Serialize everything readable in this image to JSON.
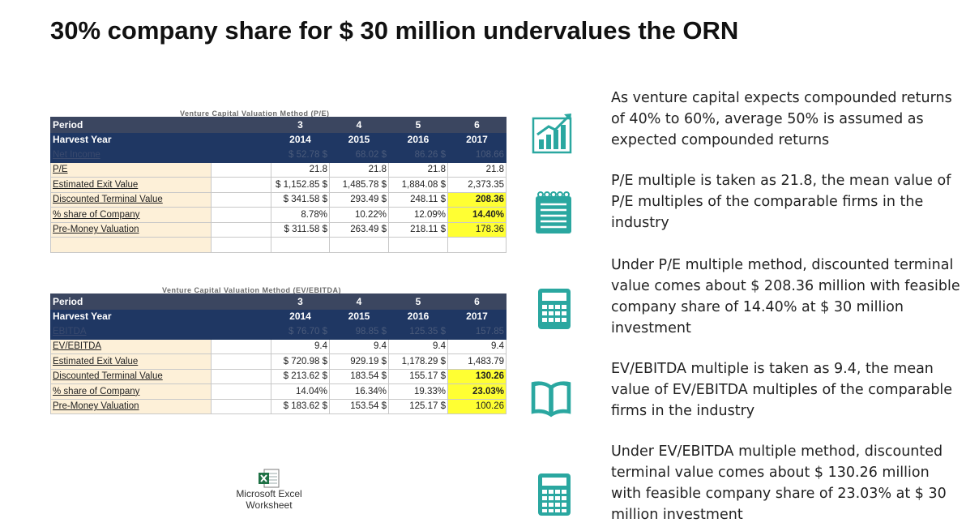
{
  "title": "30% company share for $ 30 million undervalues the ORN",
  "table1": {
    "caption": "Venture Capital Valuation Method (P/E)",
    "period_label": "Period",
    "periods": [
      "3",
      "4",
      "5",
      "6"
    ],
    "harvest_label": "Harvest Year",
    "years": [
      "2014",
      "2015",
      "2016",
      "2017"
    ],
    "rows": [
      {
        "label": "Net Income",
        "cells": [
          "$ 52.78 $",
          "68.02 $",
          "86.26 $",
          "108.66"
        ]
      },
      {
        "label": "P/E",
        "cells": [
          "21.8",
          "21.8",
          "21.8",
          "21.8"
        ]
      },
      {
        "label": "Estimated Exit Value",
        "cells": [
          "$ 1,152.85 $",
          "1,485.78 $",
          "1,884.08 $",
          "2,373.35"
        ]
      },
      {
        "label": "Discounted Terminal Value",
        "cells": [
          "$ 341.58 $",
          "293.49 $",
          "248.11 $",
          "208.36"
        ]
      },
      {
        "label": "% share of Company",
        "cells": [
          "8.78%",
          "10.22%",
          "12.09%",
          "14.40%"
        ]
      },
      {
        "label": "Pre-Money Valuation",
        "cells": [
          "$ 311.58 $",
          "263.49 $",
          "218.11 $",
          "178.36"
        ]
      }
    ]
  },
  "table2": {
    "caption": "Venture Capital Valuation Method (EV/EBITDA)",
    "period_label": "Period",
    "periods": [
      "3",
      "4",
      "5",
      "6"
    ],
    "harvest_label": "Harvest Year",
    "years": [
      "2014",
      "2015",
      "2016",
      "2017"
    ],
    "rows": [
      {
        "label": "EBITDA",
        "cells": [
          "$ 76.70 $",
          "98.85 $",
          "125.35 $",
          "157.85"
        ]
      },
      {
        "label": "EV/EBITDA",
        "cells": [
          "9.4",
          "9.4",
          "9.4",
          "9.4"
        ]
      },
      {
        "label": "Estimated Exit Value",
        "cells": [
          "$ 720.98 $",
          "929.19 $",
          "1,178.29 $",
          "1,483.79"
        ]
      },
      {
        "label": "Discounted Terminal Value",
        "cells": [
          "$ 213.62 $",
          "183.54 $",
          "155.17 $",
          "130.26"
        ]
      },
      {
        "label": "% share of Company",
        "cells": [
          "14.04%",
          "16.34%",
          "19.33%",
          "23.03%"
        ]
      },
      {
        "label": "Pre-Money Valuation",
        "cells": [
          "$ 183.62 $",
          "153.54 $",
          "125.17 $",
          "100.26"
        ]
      }
    ]
  },
  "excel": {
    "line1": "Microsoft Excel",
    "line2": "Worksheet",
    "icon": "excel-icon"
  },
  "icons": [
    "chart-growth-icon",
    "notepad-icon",
    "calculator-icon",
    "book-icon",
    "calculator-icon"
  ],
  "icon_color": "#2aa7a0",
  "paragraphs": [
    "As venture capital expects compounded returns of 40% to 60%, average 50% is assumed as expected compounded returns",
    "P/E multiple is taken as 21.8, the mean value of P/E multiples of the comparable firms in the industry",
    "Under P/E multiple method, discounted terminal value comes about $ 208.36 million with feasible company share of 14.40% at $ 30 million investment",
    "EV/EBITDA multiple is taken as 9.4, the mean value of EV/EBITDA multiples of the comparable firms in the industry",
    "Under EV/EBITDA multiple method, discounted terminal value comes about $ 130.26 million with feasible company share of 23.03% at $ 30 million investment"
  ]
}
